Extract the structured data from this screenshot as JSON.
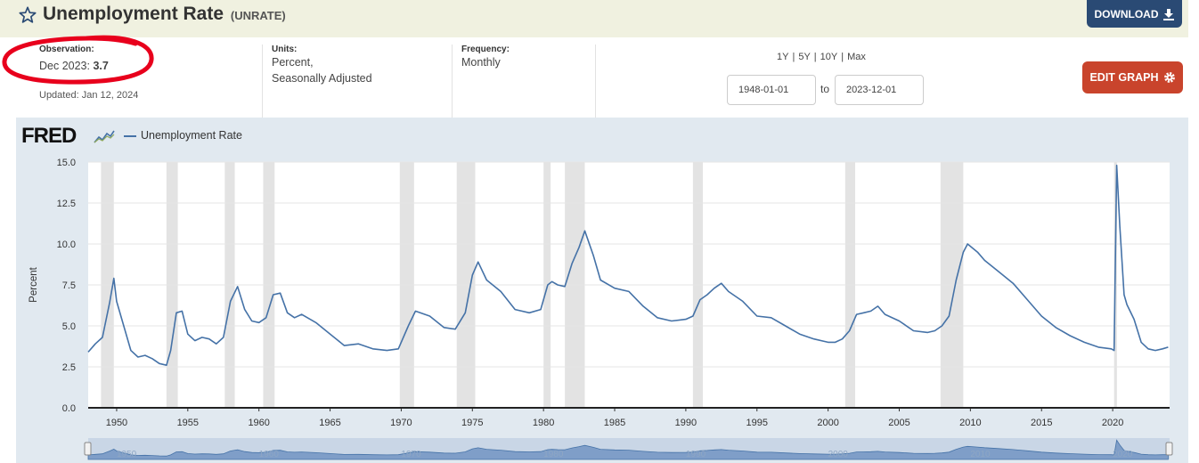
{
  "header": {
    "title": "Unemployment Rate",
    "series_id": "(UNRATE)",
    "download_label": "DOWNLOAD"
  },
  "info": {
    "observation_label": "Observation:",
    "observation_date": "Dec 2023:",
    "observation_value": "3.7",
    "updated": "Updated: Jan 12, 2024",
    "units_label": "Units:",
    "units_line1": "Percent,",
    "units_line2": "Seasonally Adjusted",
    "frequency_label": "Frequency:",
    "frequency_value": "Monthly"
  },
  "range": {
    "links": [
      "1Y",
      "5Y",
      "10Y",
      "Max"
    ],
    "start": "1948-01-01",
    "to_label": "to",
    "end": "2023-12-01",
    "edit_label": "EDIT GRAPH"
  },
  "colors": {
    "series": "#4572a7",
    "recession": "#e3e3e3",
    "download": "#2a4a74",
    "edit": "#c9442c",
    "annotation": "#e8001c"
  },
  "chart_data": {
    "type": "line",
    "logo": "FRED",
    "legend": "Unemployment Rate",
    "ylabel": "Percent",
    "ylim": [
      0,
      15
    ],
    "xlim": [
      1948.0,
      2024.0
    ],
    "yticks": [
      "0.0",
      "2.5",
      "5.0",
      "7.5",
      "10.0",
      "12.5",
      "15.0"
    ],
    "xticks": [
      "1950",
      "1955",
      "1960",
      "1965",
      "1970",
      "1975",
      "1980",
      "1985",
      "1990",
      "1995",
      "2000",
      "2005",
      "2010",
      "2015",
      "2020"
    ],
    "recessions": [
      [
        1948.9,
        1949.8
      ],
      [
        1953.5,
        1954.3
      ],
      [
        1957.6,
        1958.3
      ],
      [
        1960.3,
        1961.1
      ],
      [
        1969.9,
        1970.9
      ],
      [
        1973.9,
        1975.2
      ],
      [
        1980.0,
        1980.5
      ],
      [
        1981.5,
        1982.9
      ],
      [
        1990.5,
        1991.2
      ],
      [
        2001.2,
        2001.9
      ],
      [
        2007.9,
        2009.5
      ],
      [
        2020.1,
        2020.3
      ]
    ],
    "series": [
      {
        "name": "Unemployment Rate",
        "x": [
          1948.0,
          1948.5,
          1949.0,
          1949.5,
          1949.8,
          1950.0,
          1950.5,
          1951.0,
          1951.5,
          1952.0,
          1952.5,
          1953.0,
          1953.5,
          1953.8,
          1954.2,
          1954.6,
          1955.0,
          1955.5,
          1956.0,
          1956.5,
          1957.0,
          1957.5,
          1958.0,
          1958.5,
          1959.0,
          1959.5,
          1960.0,
          1960.5,
          1961.0,
          1961.5,
          1962.0,
          1962.5,
          1963.0,
          1964.0,
          1965.0,
          1966.0,
          1967.0,
          1968.0,
          1969.0,
          1969.8,
          1970.5,
          1971.0,
          1972.0,
          1973.0,
          1973.8,
          1974.5,
          1975.0,
          1975.4,
          1976.0,
          1977.0,
          1978.0,
          1979.0,
          1979.8,
          1980.3,
          1980.6,
          1981.0,
          1981.5,
          1982.0,
          1982.5,
          1982.9,
          1983.5,
          1984.0,
          1985.0,
          1986.0,
          1987.0,
          1988.0,
          1989.0,
          1990.0,
          1990.5,
          1991.0,
          1991.5,
          1992.0,
          1992.5,
          1993.0,
          1994.0,
          1995.0,
          1996.0,
          1997.0,
          1998.0,
          1999.0,
          2000.0,
          2000.5,
          2001.0,
          2001.5,
          2002.0,
          2002.5,
          2003.0,
          2003.5,
          2004.0,
          2005.0,
          2006.0,
          2007.0,
          2007.5,
          2008.0,
          2008.5,
          2009.0,
          2009.5,
          2009.8,
          2010.5,
          2011.0,
          2012.0,
          2013.0,
          2014.0,
          2015.0,
          2016.0,
          2017.0,
          2018.0,
          2019.0,
          2019.9,
          2020.1,
          2020.28,
          2020.5,
          2020.8,
          2021.0,
          2021.5,
          2022.0,
          2022.5,
          2023.0,
          2023.5,
          2023.9
        ],
        "values": [
          3.4,
          3.9,
          4.3,
          6.4,
          7.9,
          6.5,
          5.0,
          3.5,
          3.1,
          3.2,
          3.0,
          2.7,
          2.6,
          3.5,
          5.8,
          5.9,
          4.5,
          4.1,
          4.3,
          4.2,
          3.9,
          4.3,
          6.5,
          7.4,
          6.0,
          5.3,
          5.2,
          5.5,
          6.9,
          7.0,
          5.8,
          5.5,
          5.7,
          5.2,
          4.5,
          3.8,
          3.9,
          3.6,
          3.5,
          3.6,
          5.0,
          5.9,
          5.6,
          4.9,
          4.8,
          5.8,
          8.1,
          8.9,
          7.8,
          7.1,
          6.0,
          5.8,
          6.0,
          7.5,
          7.7,
          7.5,
          7.4,
          8.8,
          9.8,
          10.8,
          9.3,
          7.8,
          7.3,
          7.1,
          6.2,
          5.5,
          5.3,
          5.4,
          5.6,
          6.6,
          6.9,
          7.3,
          7.6,
          7.1,
          6.5,
          5.6,
          5.5,
          5.0,
          4.5,
          4.2,
          4.0,
          4.0,
          4.2,
          4.7,
          5.7,
          5.8,
          5.9,
          6.2,
          5.7,
          5.3,
          4.7,
          4.6,
          4.7,
          5.0,
          5.6,
          7.8,
          9.5,
          10.0,
          9.5,
          9.0,
          8.3,
          7.6,
          6.6,
          5.6,
          4.9,
          4.4,
          4.0,
          3.7,
          3.6,
          3.5,
          14.8,
          11.1,
          6.9,
          6.3,
          5.4,
          4.0,
          3.6,
          3.5,
          3.6,
          3.7
        ]
      }
    ]
  }
}
